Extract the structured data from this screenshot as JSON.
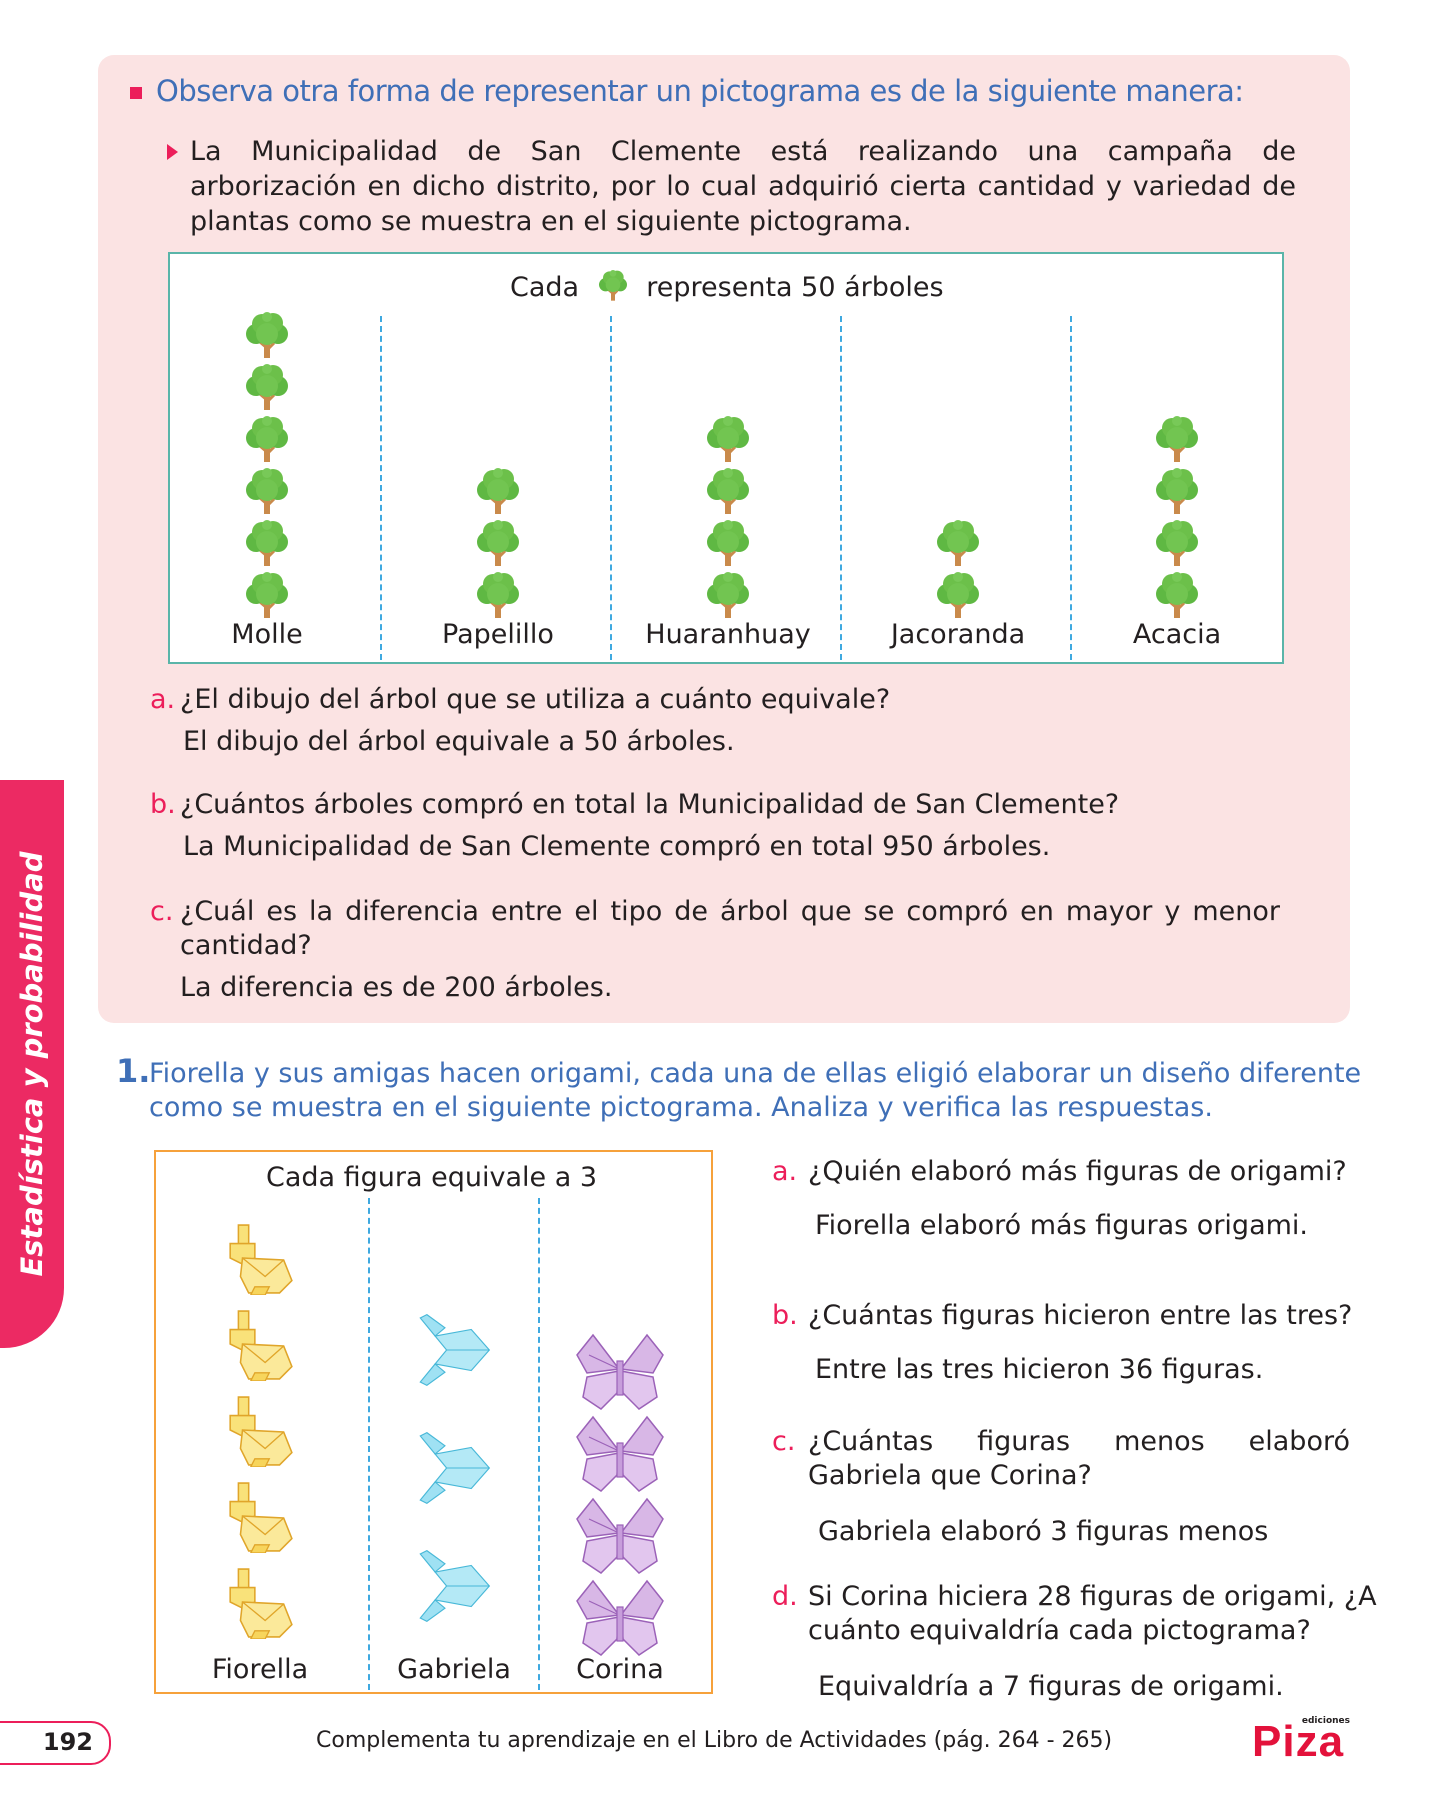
{
  "sidebar": {
    "label": "Estadística y probabilidad"
  },
  "intro": {
    "heading": "Observa otra forma de representar un pictograma es de la siguiente manera:",
    "paragraph_lines": [
      "La Municipalidad de San Clemente está realizando una campaña de",
      "arborización en dicho distrito, por lo cual adquirió cierta cantidad y variedad de",
      "plantas como se muestra en el siguiente pictograma."
    ]
  },
  "tree_pictogram": {
    "legend_prefix": "Cada",
    "legend_suffix": "representa 50 árboles",
    "symbol": "tree-icon",
    "categories": [
      "Molle",
      "Papelillo",
      "Huaranhuay",
      "Jacoranda",
      "Acacia"
    ],
    "icon_counts": [
      6,
      3,
      4,
      2,
      4
    ]
  },
  "questions_top": [
    {
      "letter": "a.",
      "question_lines": [
        "¿El dibujo del árbol que se utiliza a cuánto equivale?"
      ],
      "answer": "El dibujo del árbol equivale a 50 árboles."
    },
    {
      "letter": "b.",
      "question_lines": [
        "¿Cuántos árboles compró en total la Municipalidad de San Clemente?"
      ],
      "answer": "La Municipalidad de San Clemente compró en total 950 árboles."
    },
    {
      "letter": "c.",
      "question_lines": [
        "¿Cuál es la diferencia entre el tipo de árbol que se compró en mayor y menor",
        "cantidad?"
      ],
      "answer": "La diferencia es de 200 árboles."
    }
  ],
  "exercise1": {
    "number": "1.",
    "lines": [
      "Fiorella y sus amigas hacen origami, cada una de ellas eligió elaborar un diseño diferente",
      "como se muestra en el siguiente pictograma. Analiza y verifica las respuestas."
    ]
  },
  "origami_pictogram": {
    "legend": "Cada figura equivale a 3",
    "categories": [
      "Fiorella",
      "Gabriela",
      "Corina"
    ],
    "icons": [
      "rabbit-origami-icon",
      "fish-origami-icon",
      "butterfly-origami-icon"
    ],
    "icon_counts": [
      5,
      3,
      4
    ],
    "colors": {
      "rabbit": "#f9e27a",
      "fish": "#9fe1f3",
      "butterfly": "#d8b7e6"
    }
  },
  "questions_right": [
    {
      "letter": "a.",
      "question_lines": [
        "¿Quién elaboró más figuras de origami?"
      ],
      "answer": "Fiorella elaboró más figuras origami."
    },
    {
      "letter": "b.",
      "question_lines": [
        "¿Cuántas figuras hicieron entre las tres?"
      ],
      "answer": "Entre las tres hicieron 36 figuras."
    },
    {
      "letter": "c.",
      "question_lines": [
        "¿Cuántas figuras menos elaboró",
        "Gabriela que Corina?"
      ],
      "answer": "Gabriela elaboró 3 figuras menos"
    },
    {
      "letter": "d.",
      "question_lines": [
        "Si Corina hiciera 28 figuras de origami, ¿A",
        "cuánto equivaldría cada pictograma?"
      ],
      "answer": "Equivaldría a 7 figuras de origami."
    }
  ],
  "footer": {
    "page_number": "192",
    "text": "Complementa tu aprendizaje en el Libro de Actividades (pág. 264 - 265)",
    "logo_small": "ediciones",
    "logo_main": "Piza"
  },
  "colors": {
    "accent": "#ec1e5a",
    "heading_blue": "#3f6fb7",
    "panel_pink": "#fbe3e3",
    "tree_green": "#6cc04a"
  }
}
